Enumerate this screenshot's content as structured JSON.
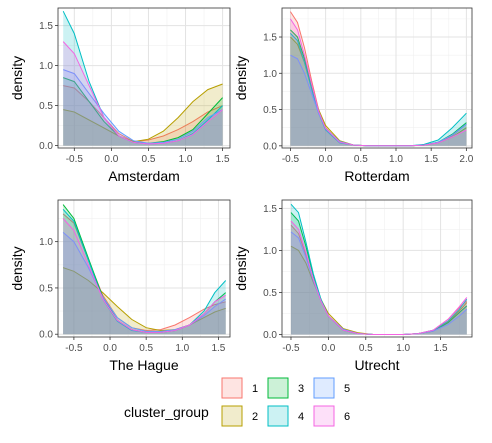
{
  "chart_data": {
    "type": "area",
    "chart_kind": "faceted density plot",
    "ylabel": "density",
    "grid": true,
    "legend": {
      "title": "cluster_group",
      "position": "bottom",
      "entries": [
        {
          "label": "1",
          "color": "#F8766D"
        },
        {
          "label": "2",
          "color": "#B79F00"
        },
        {
          "label": "3",
          "color": "#00BA38"
        },
        {
          "label": "4",
          "color": "#00BFC4"
        },
        {
          "label": "5",
          "color": "#619CFF"
        },
        {
          "label": "6",
          "color": "#F564E3"
        }
      ]
    },
    "panels": [
      {
        "xlabel": "Amsterdam",
        "xlim": [
          -0.72,
          1.6
        ],
        "ylim": [
          -0.03,
          1.72
        ],
        "xticks": [
          -0.5,
          0.0,
          0.5,
          1.0,
          1.5
        ],
        "xtick_labels": [
          "-0.5",
          "0.0",
          "0.5",
          "1.0",
          "1.5"
        ],
        "yticks": [
          0.0,
          0.5,
          1.0,
          1.5
        ],
        "ytick_labels": [
          "0.0",
          "0.5",
          "1.0",
          "1.5"
        ],
        "series": [
          {
            "name": "1",
            "x": [
              -0.65,
              -0.5,
              -0.3,
              -0.1,
              0.1,
              0.3,
              0.5,
              0.7,
              0.9,
              1.1,
              1.3,
              1.5
            ],
            "y": [
              0.75,
              0.72,
              0.55,
              0.35,
              0.15,
              0.05,
              0.07,
              0.12,
              0.2,
              0.3,
              0.42,
              0.5
            ]
          },
          {
            "name": "2",
            "x": [
              -0.65,
              -0.5,
              -0.3,
              -0.1,
              0.1,
              0.3,
              0.5,
              0.7,
              0.9,
              1.1,
              1.3,
              1.5
            ],
            "y": [
              0.45,
              0.42,
              0.32,
              0.22,
              0.12,
              0.05,
              0.08,
              0.18,
              0.35,
              0.55,
              0.7,
              0.77
            ]
          },
          {
            "name": "3",
            "x": [
              -0.65,
              -0.5,
              -0.3,
              -0.1,
              0.1,
              0.3,
              0.5,
              0.7,
              0.9,
              1.1,
              1.3,
              1.5
            ],
            "y": [
              0.85,
              0.8,
              0.55,
              0.3,
              0.12,
              0.04,
              0.03,
              0.05,
              0.1,
              0.2,
              0.4,
              0.6
            ]
          },
          {
            "name": "4",
            "x": [
              -0.65,
              -0.5,
              -0.3,
              -0.1,
              0.1,
              0.3,
              0.5,
              0.7,
              0.9,
              1.1,
              1.3,
              1.5
            ],
            "y": [
              1.68,
              1.4,
              0.8,
              0.35,
              0.12,
              0.04,
              0.02,
              0.03,
              0.06,
              0.15,
              0.32,
              0.5
            ]
          },
          {
            "name": "5",
            "x": [
              -0.65,
              -0.5,
              -0.3,
              -0.1,
              0.1,
              0.3,
              0.5,
              0.7,
              0.9,
              1.1,
              1.3,
              1.5
            ],
            "y": [
              0.95,
              0.9,
              0.65,
              0.4,
              0.18,
              0.06,
              0.03,
              0.04,
              0.08,
              0.18,
              0.35,
              0.45
            ]
          },
          {
            "name": "6",
            "x": [
              -0.65,
              -0.5,
              -0.3,
              -0.1,
              0.1,
              0.3,
              0.5,
              0.7,
              0.9,
              1.1,
              1.3,
              1.5
            ],
            "y": [
              1.3,
              1.15,
              0.75,
              0.35,
              0.12,
              0.04,
              0.02,
              0.03,
              0.06,
              0.14,
              0.3,
              0.45
            ]
          }
        ]
      },
      {
        "xlabel": "Rotterdam",
        "xlim": [
          -0.62,
          2.08
        ],
        "ylim": [
          -0.03,
          1.9
        ],
        "xticks": [
          -0.5,
          0.0,
          0.5,
          1.0,
          1.5,
          2.0
        ],
        "xtick_labels": [
          "-0.5",
          "0.0",
          "0.5",
          "1.0",
          "1.5",
          "2.0"
        ],
        "yticks": [
          0.0,
          0.5,
          1.0,
          1.5
        ],
        "ytick_labels": [
          "0.0",
          "0.5",
          "1.0",
          "1.5"
        ],
        "series": [
          {
            "name": "1",
            "x": [
              -0.5,
              -0.4,
              -0.3,
              -0.2,
              -0.1,
              0.0,
              0.2,
              0.4,
              0.6,
              0.8,
              1.0,
              1.2,
              1.4,
              1.6,
              1.8,
              2.0
            ],
            "y": [
              1.85,
              1.7,
              1.35,
              0.9,
              0.5,
              0.25,
              0.05,
              0.01,
              0,
              0,
              0,
              0,
              0.01,
              0.05,
              0.14,
              0.3
            ]
          },
          {
            "name": "2",
            "x": [
              -0.5,
              -0.4,
              -0.3,
              -0.2,
              -0.1,
              0.0,
              0.2,
              0.4,
              0.6,
              0.8,
              1.0,
              1.2,
              1.4,
              1.6,
              1.8,
              2.0
            ],
            "y": [
              1.5,
              1.4,
              1.15,
              0.8,
              0.5,
              0.28,
              0.07,
              0.01,
              0,
              0,
              0,
              0,
              0.01,
              0.04,
              0.12,
              0.25
            ]
          },
          {
            "name": "3",
            "x": [
              -0.5,
              -0.4,
              -0.3,
              -0.2,
              -0.1,
              0.0,
              0.2,
              0.4,
              0.6,
              0.8,
              1.0,
              1.2,
              1.4,
              1.6,
              1.8,
              2.0
            ],
            "y": [
              1.6,
              1.5,
              1.2,
              0.82,
              0.48,
              0.24,
              0.05,
              0.01,
              0,
              0,
              0,
              0,
              0.01,
              0.05,
              0.16,
              0.32
            ]
          },
          {
            "name": "4",
            "x": [
              -0.5,
              -0.4,
              -0.3,
              -0.2,
              -0.1,
              0.0,
              0.2,
              0.4,
              0.6,
              0.8,
              1.0,
              1.2,
              1.4,
              1.6,
              1.8,
              2.0
            ],
            "y": [
              1.55,
              1.45,
              1.15,
              0.78,
              0.45,
              0.22,
              0.04,
              0.01,
              0,
              0,
              0,
              0,
              0.02,
              0.08,
              0.25,
              0.45
            ]
          },
          {
            "name": "5",
            "x": [
              -0.5,
              -0.4,
              -0.3,
              -0.2,
              -0.1,
              0.0,
              0.2,
              0.4,
              0.6,
              0.8,
              1.0,
              1.2,
              1.4,
              1.6,
              1.8,
              2.0
            ],
            "y": [
              1.25,
              1.2,
              1.0,
              0.72,
              0.45,
              0.24,
              0.06,
              0.01,
              0,
              0,
              0,
              0,
              0.01,
              0.05,
              0.15,
              0.3
            ]
          },
          {
            "name": "6",
            "x": [
              -0.5,
              -0.4,
              -0.3,
              -0.2,
              -0.1,
              0.0,
              0.2,
              0.4,
              0.6,
              0.8,
              1.0,
              1.2,
              1.4,
              1.6,
              1.8,
              2.0
            ],
            "y": [
              1.75,
              1.6,
              1.25,
              0.85,
              0.48,
              0.24,
              0.05,
              0.01,
              0,
              0,
              0,
              0,
              0.01,
              0.04,
              0.12,
              0.22
            ]
          }
        ]
      },
      {
        "xlabel": "The Hague",
        "xlim": [
          -0.72,
          1.66
        ],
        "ylim": [
          -0.03,
          1.45
        ],
        "xticks": [
          -0.5,
          0.0,
          0.5,
          1.0,
          1.5
        ],
        "xtick_labels": [
          "-0.5",
          "0.0",
          "0.5",
          "1.0",
          "1.5"
        ],
        "yticks": [
          0.0,
          0.5,
          1.0
        ],
        "ytick_labels": [
          "0.0",
          "0.5",
          "1.0"
        ],
        "series": [
          {
            "name": "1",
            "x": [
              -0.65,
              -0.5,
              -0.3,
              -0.1,
              0.1,
              0.3,
              0.5,
              0.7,
              0.9,
              1.1,
              1.3,
              1.45,
              1.6
            ],
            "y": [
              1.3,
              1.2,
              0.8,
              0.42,
              0.18,
              0.07,
              0.04,
              0.05,
              0.1,
              0.18,
              0.27,
              0.32,
              0.35
            ]
          },
          {
            "name": "2",
            "x": [
              -0.65,
              -0.5,
              -0.3,
              -0.1,
              0.1,
              0.3,
              0.5,
              0.7,
              0.9,
              1.1,
              1.3,
              1.45,
              1.6
            ],
            "y": [
              0.72,
              0.68,
              0.58,
              0.45,
              0.3,
              0.16,
              0.07,
              0.04,
              0.05,
              0.1,
              0.18,
              0.24,
              0.28
            ]
          },
          {
            "name": "3",
            "x": [
              -0.65,
              -0.5,
              -0.3,
              -0.1,
              0.1,
              0.3,
              0.5,
              0.7,
              0.9,
              1.1,
              1.3,
              1.45,
              1.6
            ],
            "y": [
              1.4,
              1.25,
              0.82,
              0.4,
              0.15,
              0.05,
              0.02,
              0.02,
              0.04,
              0.1,
              0.22,
              0.35,
              0.45
            ]
          },
          {
            "name": "4",
            "x": [
              -0.65,
              -0.5,
              -0.3,
              -0.1,
              0.1,
              0.3,
              0.5,
              0.7,
              0.9,
              1.1,
              1.3,
              1.45,
              1.6
            ],
            "y": [
              1.35,
              1.22,
              0.8,
              0.38,
              0.14,
              0.04,
              0.02,
              0.02,
              0.04,
              0.1,
              0.25,
              0.45,
              0.58
            ]
          },
          {
            "name": "5",
            "x": [
              -0.65,
              -0.5,
              -0.3,
              -0.1,
              0.1,
              0.3,
              0.5,
              0.7,
              0.9,
              1.1,
              1.3,
              1.45,
              1.6
            ],
            "y": [
              1.1,
              1.0,
              0.72,
              0.4,
              0.18,
              0.07,
              0.03,
              0.03,
              0.05,
              0.1,
              0.2,
              0.3,
              0.38
            ]
          },
          {
            "name": "6",
            "x": [
              -0.65,
              -0.5,
              -0.3,
              -0.1,
              0.1,
              0.3,
              0.5,
              0.7,
              0.9,
              1.1,
              1.3,
              1.45,
              1.6
            ],
            "y": [
              1.25,
              1.12,
              0.75,
              0.38,
              0.15,
              0.05,
              0.02,
              0.02,
              0.04,
              0.1,
              0.22,
              0.35,
              0.42
            ]
          }
        ]
      },
      {
        "xlabel": "Utrecht",
        "xlim": [
          -0.62,
          1.92
        ],
        "ylim": [
          -0.03,
          1.6
        ],
        "xticks": [
          -0.5,
          0.0,
          0.5,
          1.0,
          1.5
        ],
        "xtick_labels": [
          "-0.5",
          "0.0",
          "0.5",
          "1.0",
          "1.5"
        ],
        "yticks": [
          0.0,
          0.5,
          1.0,
          1.5
        ],
        "ytick_labels": [
          "0.0",
          "0.5",
          "1.0",
          "1.5"
        ],
        "series": [
          {
            "name": "1",
            "x": [
              -0.5,
              -0.4,
              -0.3,
              -0.2,
              -0.1,
              0.0,
              0.2,
              0.4,
              0.6,
              0.8,
              1.0,
              1.2,
              1.4,
              1.6,
              1.75,
              1.85
            ],
            "y": [
              1.3,
              1.2,
              0.95,
              0.65,
              0.4,
              0.22,
              0.05,
              0.01,
              0,
              0,
              0,
              0.01,
              0.05,
              0.18,
              0.32,
              0.4
            ]
          },
          {
            "name": "2",
            "x": [
              -0.5,
              -0.4,
              -0.3,
              -0.2,
              -0.1,
              0.0,
              0.2,
              0.4,
              0.6,
              0.8,
              1.0,
              1.2,
              1.4,
              1.6,
              1.75,
              1.85
            ],
            "y": [
              1.05,
              1.0,
              0.85,
              0.62,
              0.42,
              0.25,
              0.07,
              0.02,
              0,
              0,
              0,
              0.01,
              0.04,
              0.15,
              0.28,
              0.38
            ]
          },
          {
            "name": "3",
            "x": [
              -0.5,
              -0.4,
              -0.3,
              -0.2,
              -0.1,
              0.0,
              0.2,
              0.4,
              0.6,
              0.8,
              1.0,
              1.2,
              1.4,
              1.6,
              1.75,
              1.85
            ],
            "y": [
              1.45,
              1.35,
              1.05,
              0.7,
              0.42,
              0.22,
              0.05,
              0.01,
              0,
              0,
              0,
              0.01,
              0.04,
              0.14,
              0.26,
              0.34
            ]
          },
          {
            "name": "4",
            "x": [
              -0.5,
              -0.4,
              -0.3,
              -0.2,
              -0.1,
              0.0,
              0.2,
              0.4,
              0.6,
              0.8,
              1.0,
              1.2,
              1.4,
              1.6,
              1.75,
              1.85
            ],
            "y": [
              1.55,
              1.45,
              1.1,
              0.72,
              0.42,
              0.22,
              0.05,
              0.01,
              0,
              0,
              0,
              0.01,
              0.05,
              0.16,
              0.3,
              0.42
            ]
          },
          {
            "name": "5",
            "x": [
              -0.5,
              -0.4,
              -0.3,
              -0.2,
              -0.1,
              0.0,
              0.2,
              0.4,
              0.6,
              0.8,
              1.0,
              1.2,
              1.4,
              1.6,
              1.75,
              1.85
            ],
            "y": [
              1.22,
              1.15,
              0.92,
              0.64,
              0.4,
              0.22,
              0.06,
              0.01,
              0,
              0,
              0,
              0.01,
              0.04,
              0.12,
              0.22,
              0.3
            ]
          },
          {
            "name": "6",
            "x": [
              -0.5,
              -0.4,
              -0.3,
              -0.2,
              -0.1,
              0.0,
              0.2,
              0.4,
              0.6,
              0.8,
              1.0,
              1.2,
              1.4,
              1.6,
              1.75,
              1.85
            ],
            "y": [
              1.35,
              1.25,
              0.98,
              0.66,
              0.4,
              0.22,
              0.05,
              0.01,
              0,
              0,
              0,
              0.01,
              0.05,
              0.18,
              0.33,
              0.44
            ]
          }
        ]
      }
    ]
  }
}
